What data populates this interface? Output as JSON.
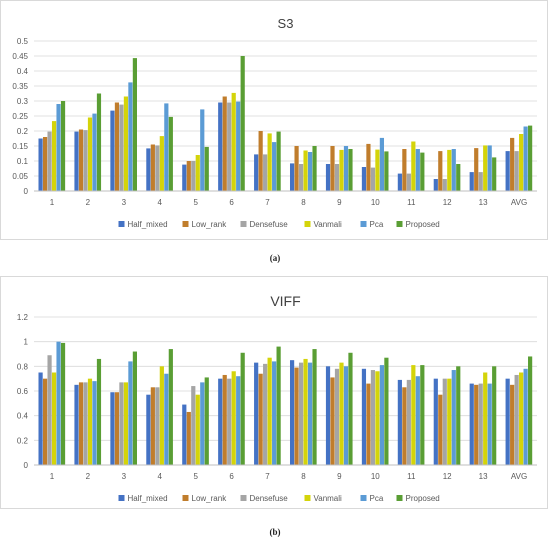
{
  "captions": [
    "(a)",
    "(b)"
  ],
  "chart_data": [
    {
      "type": "bar",
      "title": "S3",
      "categories": [
        "1",
        "2",
        "3",
        "4",
        "5",
        "6",
        "7",
        "8",
        "9",
        "10",
        "11",
        "12",
        "13",
        "AVG"
      ],
      "ylim": [
        0,
        0.5
      ],
      "yticks": [
        "0",
        "0.05",
        "0.1",
        "0.15",
        "0.2",
        "0.25",
        "0.3",
        "0.35",
        "0.4",
        "0.45",
        "0.5"
      ],
      "grid": true,
      "legend": "bottom",
      "colors": [
        "#4472c4",
        "#c07d2c",
        "#a5a5a5",
        "#d4d40a",
        "#5b9bd5",
        "#5a9e34"
      ],
      "series": [
        {
          "name": "Half_mixed",
          "values": [
            0.175,
            0.198,
            0.268,
            0.142,
            0.088,
            0.295,
            0.122,
            0.092,
            0.09,
            0.08,
            0.058,
            0.04,
            0.063,
            0.133
          ]
        },
        {
          "name": "Low_rank",
          "values": [
            0.18,
            0.205,
            0.295,
            0.155,
            0.1,
            0.315,
            0.2,
            0.15,
            0.15,
            0.157,
            0.14,
            0.133,
            0.143,
            0.177
          ]
        },
        {
          "name": "Densefuse",
          "values": [
            0.198,
            0.203,
            0.288,
            0.152,
            0.1,
            0.295,
            0.122,
            0.09,
            0.09,
            0.078,
            0.058,
            0.04,
            0.063,
            0.133
          ]
        },
        {
          "name": "Vanmali",
          "values": [
            0.233,
            0.245,
            0.315,
            0.183,
            0.12,
            0.327,
            0.192,
            0.135,
            0.137,
            0.138,
            0.165,
            0.137,
            0.152,
            0.19
          ]
        },
        {
          "name": "Pca",
          "values": [
            0.29,
            0.258,
            0.362,
            0.292,
            0.272,
            0.298,
            0.163,
            0.13,
            0.15,
            0.177,
            0.14,
            0.14,
            0.152,
            0.215
          ]
        },
        {
          "name": "Proposed",
          "values": [
            0.3,
            0.325,
            0.443,
            0.247,
            0.147,
            0.45,
            0.198,
            0.15,
            0.14,
            0.132,
            0.128,
            0.09,
            0.112,
            0.218
          ]
        }
      ]
    },
    {
      "type": "bar",
      "title": "VIFF",
      "categories": [
        "1",
        "2",
        "3",
        "4",
        "5",
        "6",
        "7",
        "8",
        "9",
        "10",
        "11",
        "12",
        "13",
        "AVG"
      ],
      "ylim": [
        0,
        1.2
      ],
      "yticks": [
        "0",
        "0.2",
        "0.4",
        "0.6",
        "0.8",
        "1",
        "1.2"
      ],
      "grid": true,
      "legend": "bottom",
      "colors": [
        "#4472c4",
        "#c07d2c",
        "#a5a5a5",
        "#d4d40a",
        "#5b9bd5",
        "#5a9e34"
      ],
      "series": [
        {
          "name": "Half_mixed",
          "values": [
            0.75,
            0.65,
            0.59,
            0.57,
            0.49,
            0.7,
            0.83,
            0.85,
            0.8,
            0.78,
            0.69,
            0.7,
            0.66,
            0.7
          ]
        },
        {
          "name": "Low_rank",
          "values": [
            0.7,
            0.67,
            0.59,
            0.63,
            0.43,
            0.73,
            0.74,
            0.79,
            0.71,
            0.66,
            0.63,
            0.57,
            0.65,
            0.65
          ]
        },
        {
          "name": "Densefuse",
          "values": [
            0.89,
            0.67,
            0.67,
            0.63,
            0.64,
            0.7,
            0.82,
            0.83,
            0.78,
            0.77,
            0.69,
            0.7,
            0.66,
            0.73
          ]
        },
        {
          "name": "Vanmali",
          "values": [
            0.75,
            0.7,
            0.67,
            0.8,
            0.57,
            0.76,
            0.87,
            0.86,
            0.83,
            0.76,
            0.81,
            0.7,
            0.75,
            0.75
          ]
        },
        {
          "name": "Pca",
          "values": [
            1.0,
            0.68,
            0.84,
            0.74,
            0.67,
            0.72,
            0.84,
            0.83,
            0.8,
            0.81,
            0.72,
            0.77,
            0.66,
            0.78
          ]
        },
        {
          "name": "Proposed",
          "values": [
            0.99,
            0.86,
            0.92,
            0.94,
            0.71,
            0.91,
            0.96,
            0.94,
            0.91,
            0.87,
            0.81,
            0.8,
            0.8,
            0.88
          ]
        }
      ]
    }
  ]
}
